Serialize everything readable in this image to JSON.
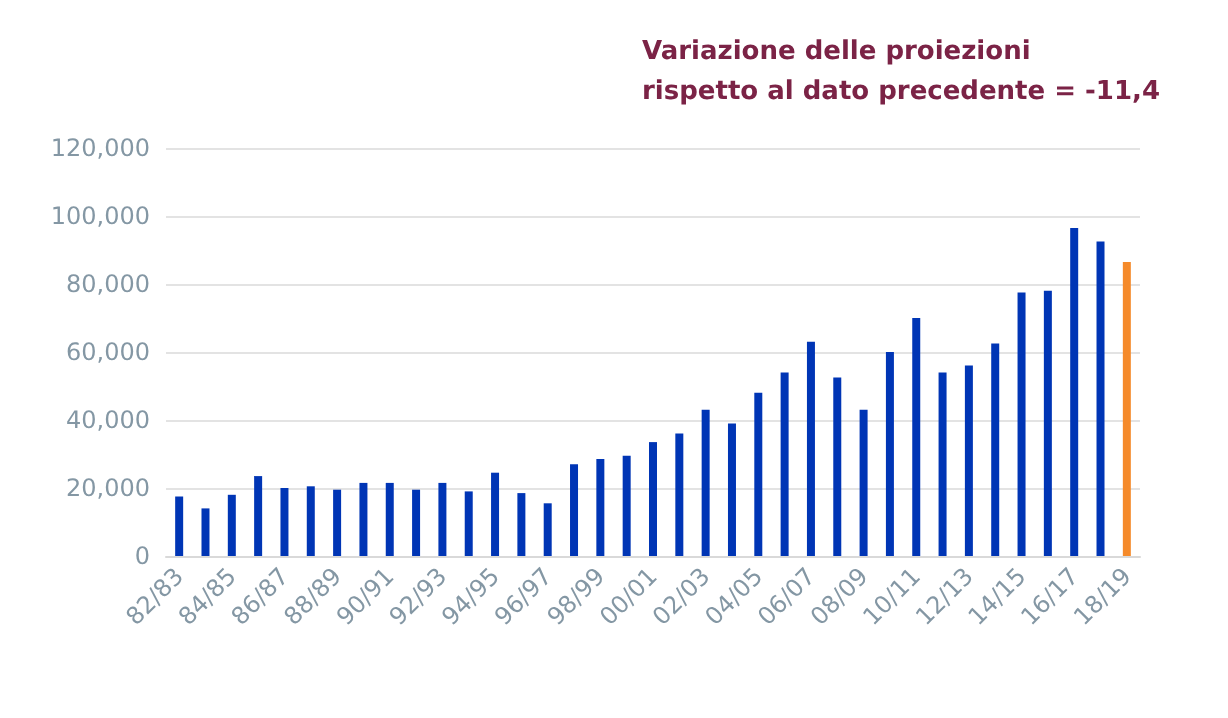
{
  "chart_data": {
    "type": "bar",
    "categories": [
      "82/83",
      null,
      "84/85",
      null,
      "86/87",
      null,
      "88/89",
      null,
      "90/91",
      null,
      "92/93",
      null,
      "94/95",
      null,
      "96/97",
      null,
      "98/99",
      null,
      "00/01",
      null,
      "02/03",
      null,
      "04/05",
      null,
      "06/07",
      null,
      "08/09",
      null,
      "10/11",
      null,
      "12/13",
      null,
      "14/15",
      null,
      "16/17",
      null,
      "18/19"
    ],
    "values": [
      17500,
      14000,
      18000,
      23500,
      20000,
      20500,
      19500,
      21500,
      21500,
      19500,
      21500,
      19000,
      24500,
      18500,
      15500,
      27000,
      28500,
      29500,
      33500,
      36000,
      43000,
      39000,
      48000,
      54000,
      63000,
      52500,
      43000,
      60000,
      70000,
      54000,
      56000,
      62500,
      77500,
      78000,
      96500,
      92500,
      86500
    ],
    "colors": [
      "#0035b5",
      "#0035b5",
      "#0035b5",
      "#0035b5",
      "#0035b5",
      "#0035b5",
      "#0035b5",
      "#0035b5",
      "#0035b5",
      "#0035b5",
      "#0035b5",
      "#0035b5",
      "#0035b5",
      "#0035b5",
      "#0035b5",
      "#0035b5",
      "#0035b5",
      "#0035b5",
      "#0035b5",
      "#0035b5",
      "#0035b5",
      "#0035b5",
      "#0035b5",
      "#0035b5",
      "#0035b5",
      "#0035b5",
      "#0035b5",
      "#0035b5",
      "#0035b5",
      "#0035b5",
      "#0035b5",
      "#0035b5",
      "#0035b5",
      "#0035b5",
      "#0035b5",
      "#0035b5",
      "#f58a2a"
    ],
    "ylim": [
      0,
      120000
    ],
    "yticks": [
      {
        "value": 0,
        "label": "0"
      },
      {
        "value": 20000,
        "label": "20,000"
      },
      {
        "value": 40000,
        "label": "40,000"
      },
      {
        "value": 60000,
        "label": "60,000"
      },
      {
        "value": 80000,
        "label": "80,000"
      },
      {
        "value": 100000,
        "label": "100,000"
      },
      {
        "value": 120000,
        "label": "120,000"
      }
    ],
    "grid": "y",
    "annotations": [
      "Variazione delle proiezioni\nrispetto al dato precedente = -11,4"
    ]
  }
}
